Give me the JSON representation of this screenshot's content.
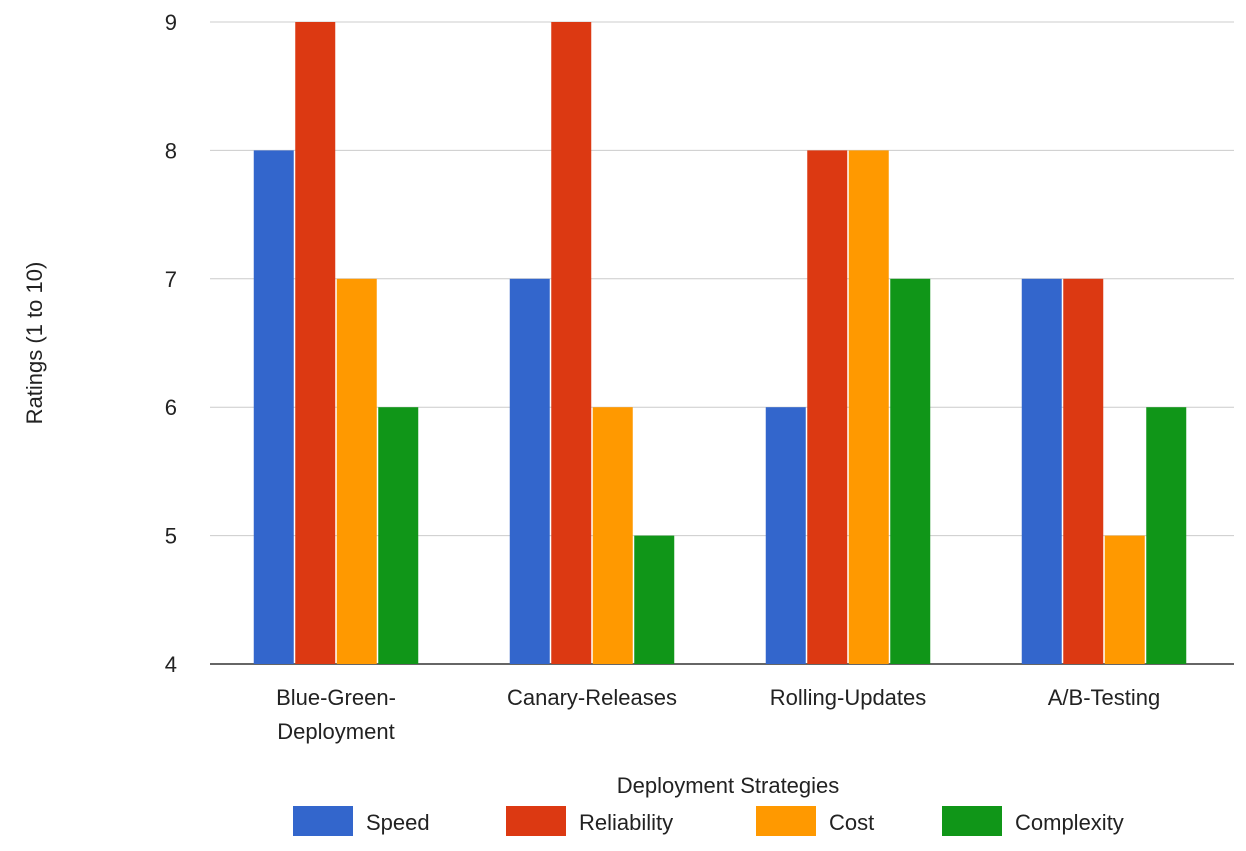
{
  "chart_data": {
    "type": "bar",
    "title": "",
    "xlabel": "Deployment Strategies",
    "ylabel": "Ratings (1 to 10)",
    "ylim": [
      4,
      9
    ],
    "yticks": [
      "4",
      "5",
      "6",
      "7",
      "8",
      "9"
    ],
    "grid": true,
    "legend_position": "bottom",
    "categories": [
      "Blue-Green-Deployment",
      "Canary-Releases",
      "Rolling-Updates",
      "A/B-Testing"
    ],
    "category_labels": [
      [
        "Blue-Green-",
        "Deployment"
      ],
      [
        "Canary-Releases"
      ],
      [
        "Rolling-Updates"
      ],
      [
        "A/B-Testing"
      ]
    ],
    "series": [
      {
        "name": "Speed",
        "color": "#3366cc",
        "values": [
          8,
          7,
          6,
          7
        ]
      },
      {
        "name": "Reliability",
        "color": "#dc3912",
        "values": [
          9,
          9,
          8,
          7
        ]
      },
      {
        "name": "Cost",
        "color": "#ff9900",
        "values": [
          7,
          6,
          8,
          5
        ]
      },
      {
        "name": "Complexity",
        "color": "#109618",
        "values": [
          6,
          5,
          7,
          6
        ]
      }
    ]
  }
}
